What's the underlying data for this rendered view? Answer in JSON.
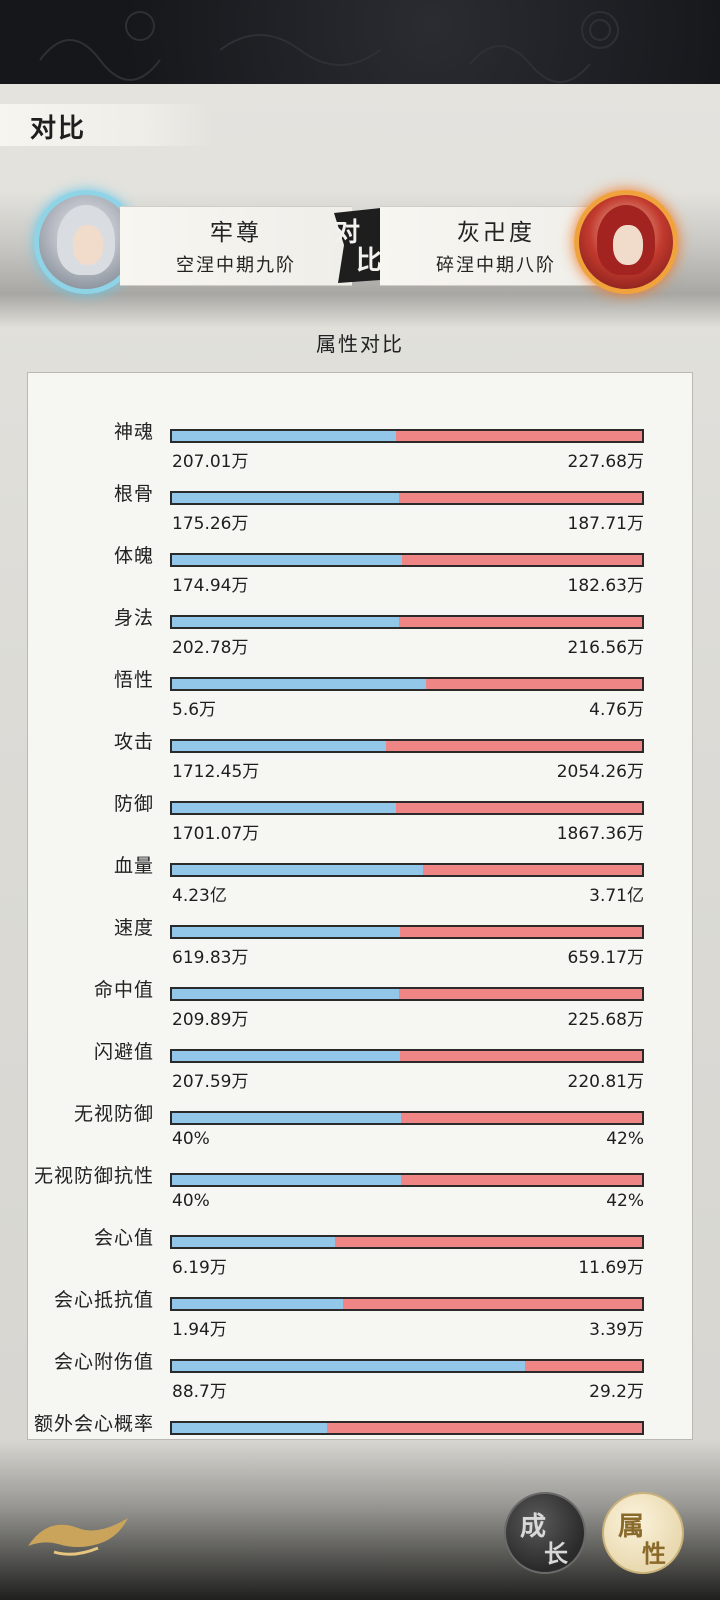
{
  "header": {
    "title": "对比"
  },
  "players": {
    "left": {
      "name": "牢尊",
      "realm": "空涅中期九阶",
      "avatar_icon": "white-haired-hero-avatar-icon",
      "frame_color": "#8fd3e6"
    },
    "right": {
      "name": "灰卍度",
      "realm": "碎涅中期八阶",
      "avatar_icon": "red-haired-hero-avatar-icon",
      "frame_color": "#f0a23c"
    }
  },
  "vs_badge": {
    "line1": "对",
    "line2": "比"
  },
  "section_title": "属性对比",
  "colors": {
    "left_bar": "#93c7ea",
    "right_bar": "#ef8585"
  },
  "stats": [
    {
      "label": "神魂",
      "left": "207.01万",
      "right": "227.68万",
      "left_share": 0.476
    },
    {
      "label": "根骨",
      "left": "175.26万",
      "right": "187.71万",
      "left_share": 0.483
    },
    {
      "label": "体魄",
      "left": "174.94万",
      "right": "182.63万",
      "left_share": 0.489
    },
    {
      "label": "身法",
      "left": "202.78万",
      "right": "216.56万",
      "left_share": 0.484
    },
    {
      "label": "悟性",
      "left": "5.6万",
      "right": "4.76万",
      "left_share": 0.541
    },
    {
      "label": "攻击",
      "left": "1712.45万",
      "right": "2054.26万",
      "left_share": 0.455
    },
    {
      "label": "防御",
      "left": "1701.07万",
      "right": "1867.36万",
      "left_share": 0.477
    },
    {
      "label": "血量",
      "left": "4.23亿",
      "right": "3.71亿",
      "left_share": 0.533
    },
    {
      "label": "速度",
      "left": "619.83万",
      "right": "659.17万",
      "left_share": 0.485
    },
    {
      "label": "命中值",
      "left": "209.89万",
      "right": "225.68万",
      "left_share": 0.482
    },
    {
      "label": "闪避值",
      "left": "207.59万",
      "right": "220.81万",
      "left_share": 0.485
    },
    {
      "label": "无视防御",
      "left": "40%",
      "right": "42%",
      "left_share": 0.488
    },
    {
      "label": "无视防御抗性",
      "left": "40%",
      "right": "42%",
      "left_share": 0.488
    },
    {
      "label": "会心值",
      "left": "6.19万",
      "right": "11.69万",
      "left_share": 0.346
    },
    {
      "label": "会心抵抗值",
      "left": "1.94万",
      "right": "3.39万",
      "left_share": 0.364
    },
    {
      "label": "会心附伤值",
      "left": "88.7万",
      "right": "29.2万",
      "left_share": 0.752
    },
    {
      "label": "额外会心概率",
      "left": "",
      "right": "",
      "left_share": 0.33
    }
  ],
  "bottom_buttons": {
    "growth": {
      "char1": "成",
      "char2": "长"
    },
    "attr": {
      "char1": "属",
      "char2": "性"
    }
  }
}
